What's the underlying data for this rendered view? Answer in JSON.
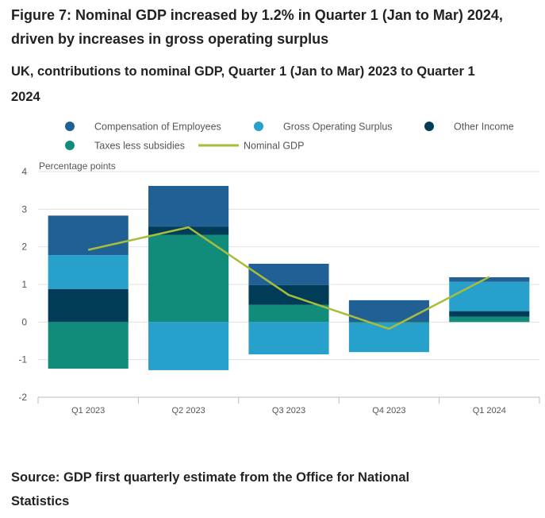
{
  "title": "Figure 7: Nominal GDP increased by 1.2% in Quarter 1 (Jan to Mar) 2024, driven by increases in gross operating surplus",
  "subtitle": "UK, contributions to nominal GDP, Quarter 1 (Jan to Mar) 2023 to Quarter 1 2024",
  "source": "Source: GDP first quarterly estimate from the Office for National Statistics",
  "colors": {
    "compensation": "#206095",
    "gos": "#27A0CC",
    "other_income": "#003C57",
    "taxes": "#118C7B",
    "nominal_gdp": "#A8BD3A",
    "grid": "#E0E0E0",
    "axis_text": "#555555"
  },
  "chart_data": {
    "type": "bar",
    "stacked": true,
    "ylabel": "Percentage points",
    "ylim": [
      -2,
      4
    ],
    "yticks": [
      -2,
      -1,
      0,
      1,
      2,
      3,
      4
    ],
    "grid": true,
    "legend_position": "top",
    "categories": [
      "Q1 2023",
      "Q2 2023",
      "Q3 2023",
      "Q4 2023",
      "Q1 2024"
    ],
    "series": [
      {
        "name": "Compensation of Employees",
        "key": "compensation",
        "values": [
          1.05,
          1.08,
          0.57,
          0.58,
          0.12
        ]
      },
      {
        "name": "Gross Operating Surplus",
        "key": "gos",
        "values": [
          0.9,
          -1.28,
          -0.86,
          -0.77,
          0.78
        ]
      },
      {
        "name": "Other Income",
        "key": "other_income",
        "values": [
          0.88,
          0.22,
          0.52,
          0.0,
          0.15
        ]
      },
      {
        "name": "Taxes less subsidies",
        "key": "taxes",
        "values": [
          -1.24,
          2.32,
          0.46,
          -0.03,
          0.14
        ]
      }
    ],
    "line": {
      "name": "Nominal GDP",
      "key": "nominal_gdp",
      "values": [
        1.92,
        2.52,
        0.72,
        -0.18,
        1.2
      ]
    }
  }
}
